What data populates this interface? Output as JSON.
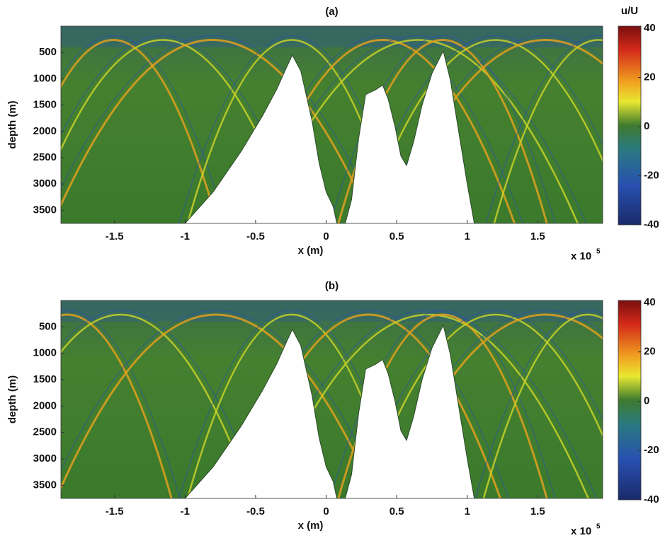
{
  "chart_data": [
    {
      "type": "heatmap",
      "title": "(a)",
      "xlabel": "x (m)",
      "ylabel": "depth (m)",
      "x_multiplier": "x 10",
      "x_exponent": "5",
      "xlim": [
        -1.88,
        1.96
      ],
      "xticks": [
        -1.5,
        -1,
        -0.5,
        0,
        0.5,
        1,
        1.5
      ],
      "ylim": [
        0,
        3750
      ],
      "yticks": [
        500,
        1000,
        1500,
        2000,
        2500,
        3000,
        3500
      ],
      "y_inverted": true,
      "colorbar_label": "u/U",
      "clim": [
        -40,
        40
      ],
      "cticks": [
        -40,
        -20,
        0,
        20,
        40
      ],
      "seafloor": {
        "x": [
          -1.0,
          -0.8,
          -0.6,
          -0.45,
          -0.35,
          -0.28,
          -0.24,
          -0.18,
          -0.1,
          -0.05,
          0.0,
          0.05,
          0.08,
          0.13,
          0.18,
          0.23,
          0.28,
          0.35,
          0.4,
          0.44,
          0.49,
          0.53,
          0.57,
          0.62,
          0.68,
          0.75,
          0.83,
          0.88,
          0.95,
          1.0,
          1.05
        ],
        "depth": [
          3750,
          3150,
          2370,
          1700,
          1200,
          780,
          550,
          850,
          1800,
          2600,
          3150,
          3430,
          3800,
          3800,
          3300,
          2140,
          1300,
          1210,
          1120,
          1390,
          1930,
          2470,
          2650,
          2200,
          1500,
          900,
          470,
          1020,
          2180,
          3000,
          3750
        ]
      }
    },
    {
      "type": "heatmap",
      "title": "(b)",
      "xlabel": "x (m)",
      "ylabel": "depth (m)",
      "x_multiplier": "x 10",
      "x_exponent": "5",
      "xlim": [
        -1.88,
        1.96
      ],
      "xticks": [
        -1.5,
        -1,
        -0.5,
        0,
        0.5,
        1,
        1.5
      ],
      "ylim": [
        0,
        3750
      ],
      "yticks": [
        500,
        1000,
        1500,
        2000,
        2500,
        3000,
        3500
      ],
      "y_inverted": true,
      "clim": [
        -40,
        40
      ],
      "cticks": [
        -40,
        -20,
        0,
        20,
        40
      ],
      "seafloor": {
        "x": [
          -1.0,
          -0.8,
          -0.6,
          -0.45,
          -0.35,
          -0.28,
          -0.24,
          -0.18,
          -0.1,
          -0.05,
          0.0,
          0.05,
          0.08,
          0.13,
          0.18,
          0.23,
          0.28,
          0.35,
          0.4,
          0.44,
          0.49,
          0.53,
          0.57,
          0.62,
          0.68,
          0.75,
          0.83,
          0.88,
          0.95,
          1.0,
          1.05
        ],
        "depth": [
          3750,
          3150,
          2370,
          1700,
          1200,
          780,
          550,
          850,
          1800,
          2600,
          3150,
          3430,
          3800,
          3800,
          3300,
          2140,
          1300,
          1210,
          1120,
          1390,
          1930,
          2470,
          2650,
          2200,
          1500,
          900,
          470,
          1020,
          2180,
          3000,
          3750
        ]
      }
    }
  ]
}
